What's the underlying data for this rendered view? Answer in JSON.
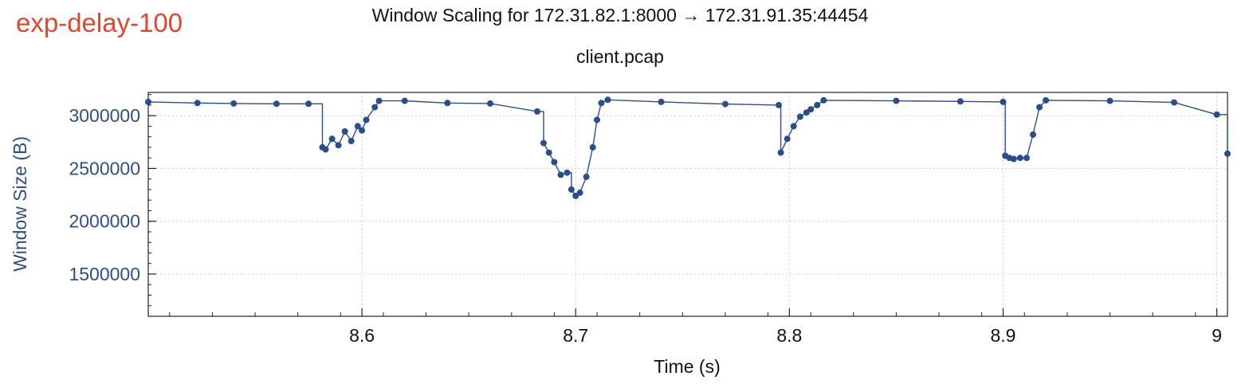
{
  "tag": "exp-delay-100",
  "chart_data": {
    "type": "scatter",
    "title": "Window Scaling for 172.31.82.1:8000 → 172.31.91.35:44454",
    "subtitle": "client.pcap",
    "xlabel": "Time (s)",
    "ylabel": "Window Size (B)",
    "xlim": [
      8.5,
      9.005
    ],
    "ylim": [
      1100000,
      3220000
    ],
    "xticks": [
      8.6,
      8.7,
      8.8,
      8.9,
      9
    ],
    "xtick_labels": [
      "8.6",
      "8.7",
      "8.8",
      "8.9",
      "9"
    ],
    "yticks": [
      1500000,
      2000000,
      2500000,
      3000000
    ],
    "ytick_labels": [
      "1500000",
      "2000000",
      "2500000",
      "3000000"
    ],
    "grid": true,
    "color": "#2a4d8c",
    "series": [
      {
        "x": [
          8.5,
          8.523,
          8.54,
          8.56,
          8.575,
          8.5815,
          8.583,
          8.586,
          8.589,
          8.592,
          8.595,
          8.598,
          8.6,
          8.602,
          8.606,
          8.608,
          8.62,
          8.64,
          8.66,
          8.682,
          8.685,
          8.6875,
          8.69,
          8.693,
          8.696,
          8.698,
          8.7,
          8.702,
          8.705,
          8.708,
          8.71,
          8.712,
          8.715,
          8.74,
          8.77,
          8.795,
          8.796,
          8.799,
          8.802,
          8.805,
          8.808,
          8.81,
          8.813,
          8.816,
          8.85,
          8.88,
          8.9,
          8.901,
          8.903,
          8.905,
          8.908,
          8.911,
          8.914,
          8.917,
          8.92,
          8.95,
          8.98,
          9.0,
          9.005
        ],
        "y": [
          3130000,
          3120000,
          3115000,
          3112000,
          3112000,
          2700000,
          2680000,
          2780000,
          2720000,
          2850000,
          2760000,
          2900000,
          2860000,
          2960000,
          3080000,
          3140000,
          3140000,
          3120000,
          3115000,
          3040000,
          2740000,
          2650000,
          2560000,
          2440000,
          2460000,
          2300000,
          2240000,
          2270000,
          2420000,
          2700000,
          2960000,
          3120000,
          3150000,
          3130000,
          3110000,
          3100000,
          2650000,
          2780000,
          2900000,
          2990000,
          3030000,
          3060000,
          3100000,
          3145000,
          3140000,
          3135000,
          3130000,
          2620000,
          2600000,
          2590000,
          2600000,
          2600000,
          2820000,
          3080000,
          3145000,
          3140000,
          3125000,
          3010000,
          2640000
        ]
      }
    ]
  }
}
